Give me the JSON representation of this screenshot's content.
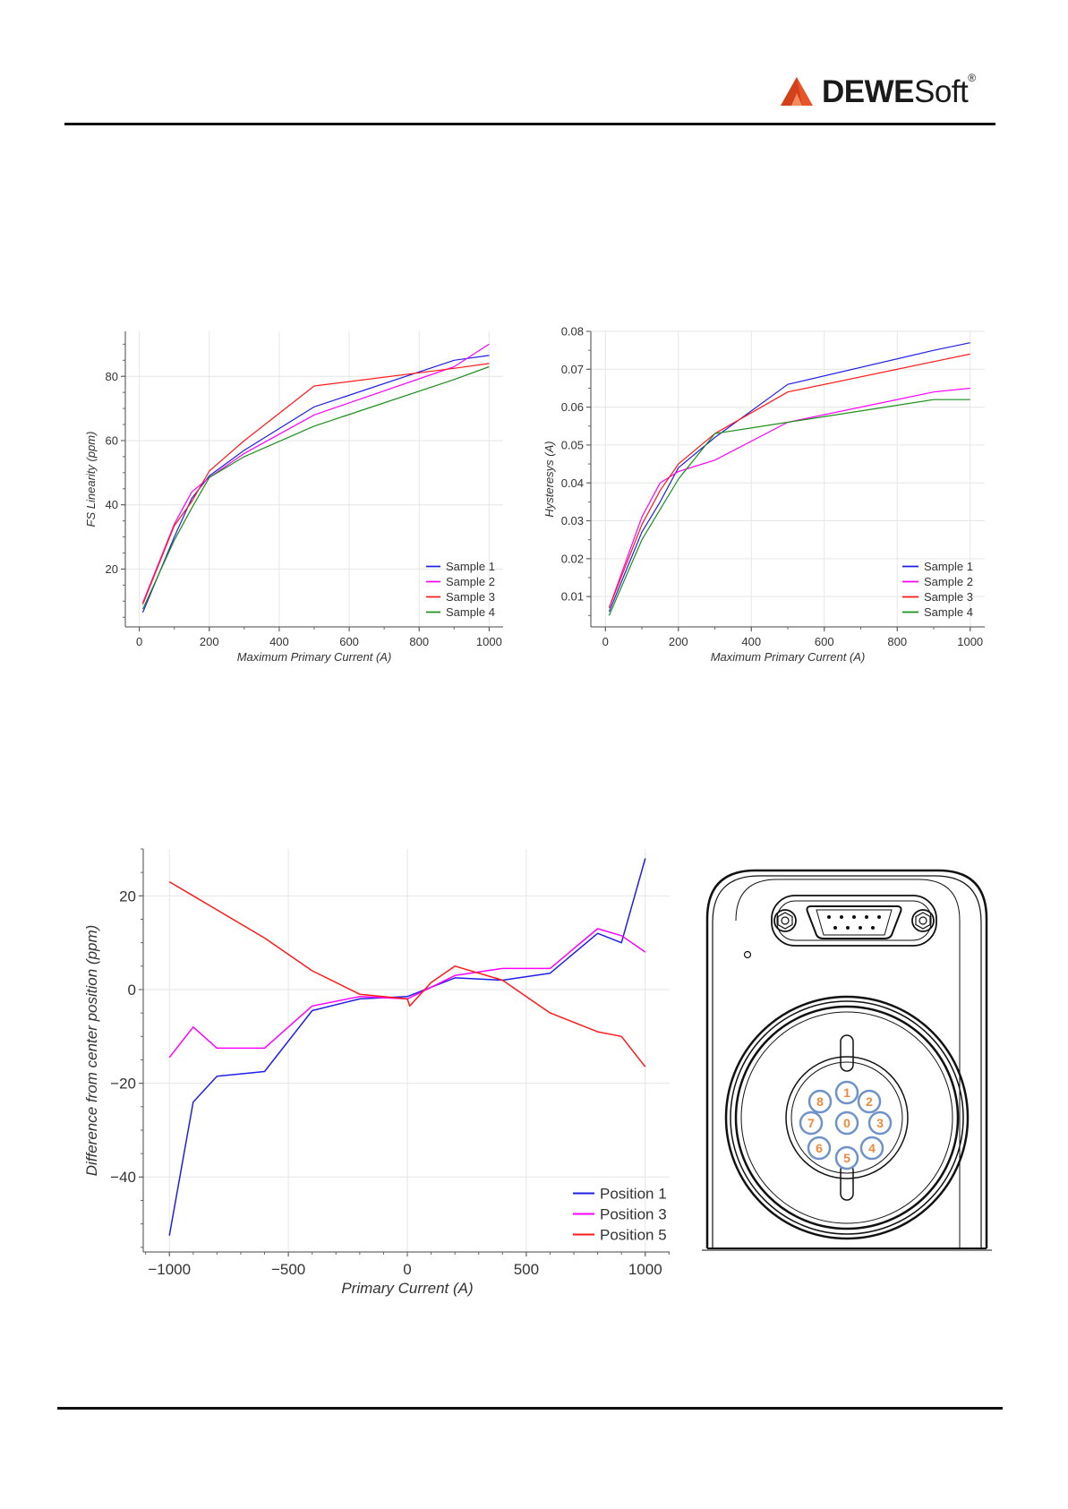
{
  "brand": {
    "logo_text_bold": "DEWE",
    "logo_text_regular": "Soft",
    "logo_mark": "®",
    "logo_color": "#e8552b"
  },
  "chart_data": [
    {
      "type": "line",
      "title": "",
      "xlabel": "Maximum Primary Current (A)",
      "ylabel": "FS Linearity (ppm)",
      "xlim": [
        -40,
        1040
      ],
      "ylim": [
        2,
        94
      ],
      "xticks": [
        0,
        200,
        400,
        600,
        800,
        1000
      ],
      "yticks": [
        20,
        40,
        60,
        80
      ],
      "grid": true,
      "legend": "bottom-right",
      "series": [
        {
          "name": "Sample 1",
          "color": "#1f1fe6",
          "x": [
            10,
            100,
            150,
            200,
            300,
            500,
            900,
            1000
          ],
          "y": [
            6.5,
            30,
            42,
            49,
            57,
            70.5,
            85,
            86.5
          ]
        },
        {
          "name": "Sample 2",
          "color": "#ff00ff",
          "x": [
            10,
            100,
            150,
            200,
            300,
            500,
            900,
            1000
          ],
          "y": [
            9.5,
            34,
            44,
            48.5,
            56,
            68,
            83,
            90
          ]
        },
        {
          "name": "Sample 3",
          "color": "#ff1a1a",
          "x": [
            10,
            100,
            150,
            200,
            300,
            500,
            900,
            1000
          ],
          "y": [
            9,
            33.5,
            41,
            50.5,
            60,
            77,
            82.5,
            84
          ]
        },
        {
          "name": "Sample 4",
          "color": "#1a8f1a",
          "x": [
            10,
            100,
            150,
            200,
            300,
            500,
            900,
            1000
          ],
          "y": [
            7.5,
            29,
            39,
            48.5,
            55,
            64.5,
            79,
            83
          ]
        }
      ]
    },
    {
      "type": "line",
      "title": "",
      "xlabel": "Maximum Primary Current (A)",
      "ylabel": "Hysteresys (A)",
      "xlim": [
        -40,
        1040
      ],
      "ylim": [
        0.002,
        0.08
      ],
      "xticks": [
        0,
        200,
        400,
        600,
        800,
        1000
      ],
      "yticks": [
        0.01,
        0.02,
        0.03,
        0.04,
        0.05,
        0.06,
        0.07,
        0.08
      ],
      "yticklabels": [
        "0.01",
        "0.02",
        "0.03",
        "0.04",
        "0.05",
        "0.06",
        "0.07",
        "0.08"
      ],
      "grid": true,
      "legend": "bottom-right",
      "series": [
        {
          "name": "Sample 1",
          "color": "#1f1fe6",
          "x": [
            10,
            100,
            150,
            200,
            300,
            500,
            900,
            1000
          ],
          "y": [
            0.006,
            0.027,
            0.035,
            0.044,
            0.052,
            0.066,
            0.075,
            0.077
          ]
        },
        {
          "name": "Sample 2",
          "color": "#ff00ff",
          "x": [
            10,
            100,
            150,
            200,
            300,
            500,
            900,
            1000
          ],
          "y": [
            0.007,
            0.031,
            0.04,
            0.043,
            0.046,
            0.056,
            0.064,
            0.065
          ]
        },
        {
          "name": "Sample 3",
          "color": "#ff1a1a",
          "x": [
            10,
            100,
            150,
            200,
            300,
            500,
            900,
            1000
          ],
          "y": [
            0.007,
            0.029,
            0.038,
            0.045,
            0.053,
            0.064,
            0.072,
            0.074
          ]
        },
        {
          "name": "Sample 4",
          "color": "#1a8f1a",
          "x": [
            10,
            100,
            150,
            200,
            300,
            500,
            900,
            1000
          ],
          "y": [
            0.005,
            0.025,
            0.033,
            0.041,
            0.053,
            0.056,
            0.062,
            0.062
          ]
        }
      ]
    },
    {
      "type": "line",
      "title": "",
      "xlabel": "Primary Current (A)",
      "ylabel": "Difference from center position (ppm)",
      "xlim": [
        -1110,
        1110
      ],
      "ylim": [
        -56,
        30
      ],
      "xticks": [
        -1000,
        -500,
        0,
        500,
        1000
      ],
      "xticklabels": [
        "−1000",
        "−500",
        "0",
        "500",
        "1000"
      ],
      "yticks": [
        -40,
        -20,
        0,
        20
      ],
      "yticklabels": [
        "−40",
        "−20",
        "0",
        "20"
      ],
      "grid": true,
      "legend": "bottom-right",
      "series": [
        {
          "name": "Position 1",
          "color": "#1f1fe6",
          "x": [
            -1000,
            -900,
            -800,
            -600,
            -400,
            -200,
            0,
            200,
            400,
            600,
            800,
            900,
            1000
          ],
          "y": [
            -52.5,
            -24,
            -18.5,
            -17.5,
            -4.5,
            -2,
            -1.5,
            2.5,
            2,
            3.5,
            12,
            10,
            28
          ]
        },
        {
          "name": "Position 3",
          "color": "#ff00ff",
          "x": [
            -1000,
            -900,
            -800,
            -600,
            -400,
            -200,
            0,
            200,
            400,
            600,
            800,
            900,
            1000
          ],
          "y": [
            -14.5,
            -8,
            -12.5,
            -12.5,
            -3.5,
            -1.5,
            -2,
            3,
            4.5,
            4.5,
            13,
            11.5,
            8
          ]
        },
        {
          "name": "Position 5",
          "color": "#ff1a1a",
          "x": [
            -1000,
            -900,
            -800,
            -600,
            -400,
            -300,
            -200,
            0,
            10,
            100,
            200,
            400,
            600,
            800,
            900,
            1000
          ],
          "y": [
            23,
            20,
            17,
            11,
            4,
            1.5,
            -1,
            -2,
            -3.5,
            1.5,
            5,
            2,
            -5,
            -9,
            -10,
            -16.5
          ]
        }
      ]
    }
  ],
  "device_pins": [
    "1",
    "2",
    "3",
    "4",
    "5",
    "6",
    "7",
    "8",
    "0"
  ]
}
